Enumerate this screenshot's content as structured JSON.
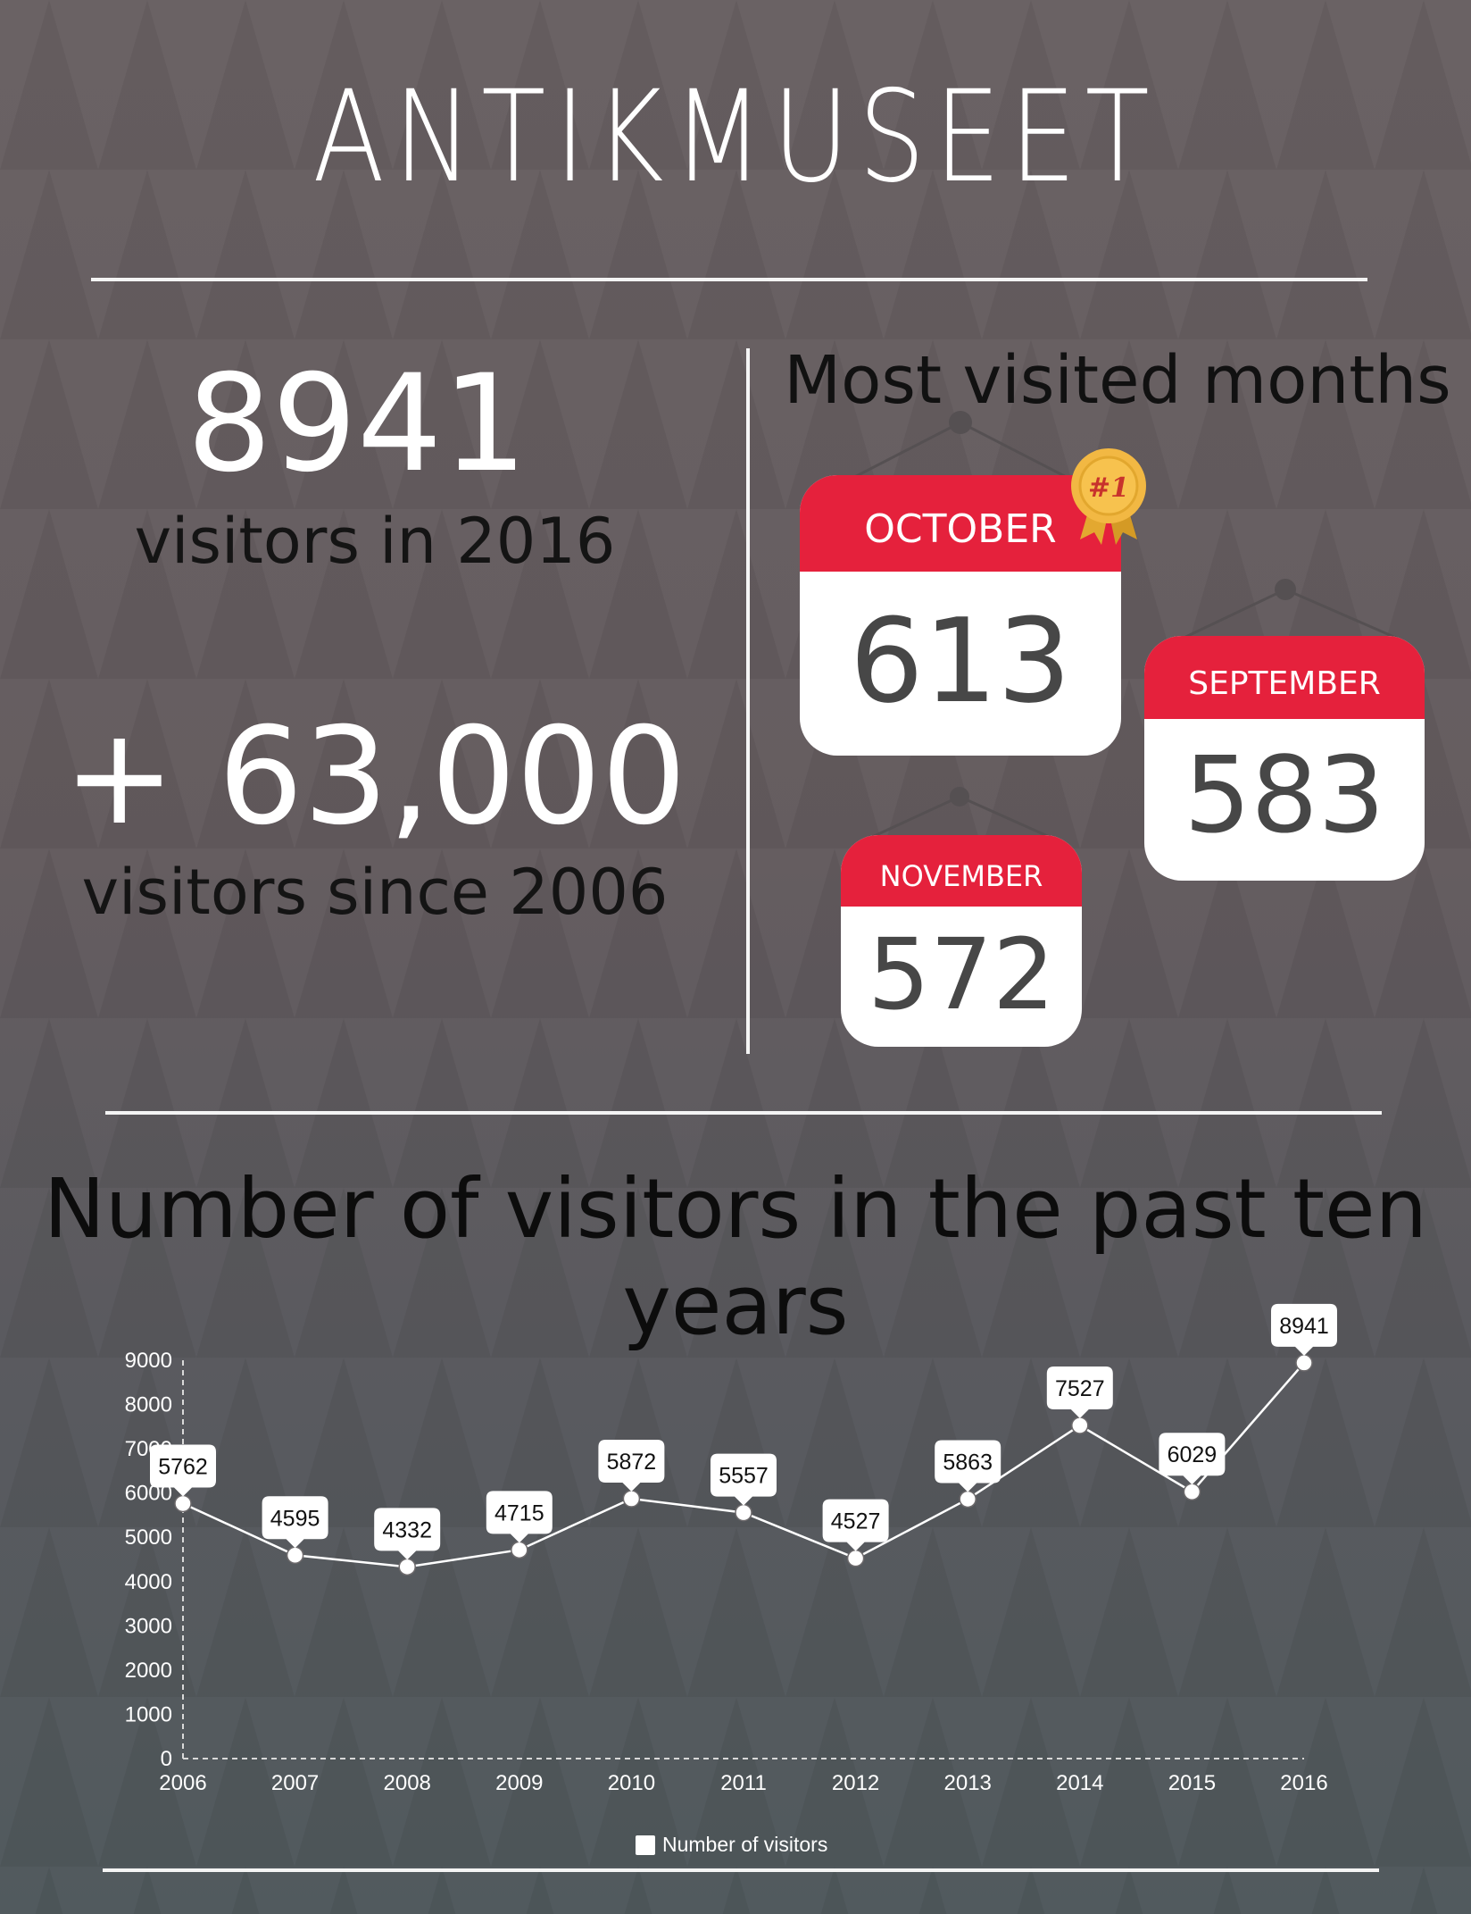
{
  "brand": {
    "logo_text": "ANTIKMUSEET"
  },
  "stats": {
    "year_count": "8941",
    "year_label": "visitors in 2016",
    "total_count": "+ 63,000",
    "total_label": "visitors since 2006"
  },
  "months": {
    "title": "Most visited months",
    "badge_text": "#1",
    "items": [
      {
        "month": "OCTOBER",
        "count": "613"
      },
      {
        "month": "SEPTEMBER",
        "count": "583"
      },
      {
        "month": "NOVEMBER",
        "count": "572"
      }
    ],
    "accent_color": "#e5213c",
    "badge_color": "#f0b63a"
  },
  "chart_data": {
    "type": "line",
    "title": "Number of visitors in the past ten years",
    "x": [
      "2006",
      "2007",
      "2008",
      "2009",
      "2010",
      "2011",
      "2012",
      "2013",
      "2014",
      "2015",
      "2016"
    ],
    "series": [
      {
        "name": "Number of visitors",
        "values": [
          5762,
          4595,
          4332,
          4715,
          5872,
          5557,
          4527,
          5863,
          7527,
          6029,
          8941
        ]
      }
    ],
    "ylim": [
      0,
      9000
    ],
    "yticks": [
      0,
      1000,
      2000,
      3000,
      4000,
      5000,
      6000,
      7000,
      8000,
      9000
    ],
    "xlabel": "",
    "ylabel": "",
    "data_labels": true,
    "grid": false,
    "legend": "bottom-center",
    "line_color": "#ffffff"
  }
}
